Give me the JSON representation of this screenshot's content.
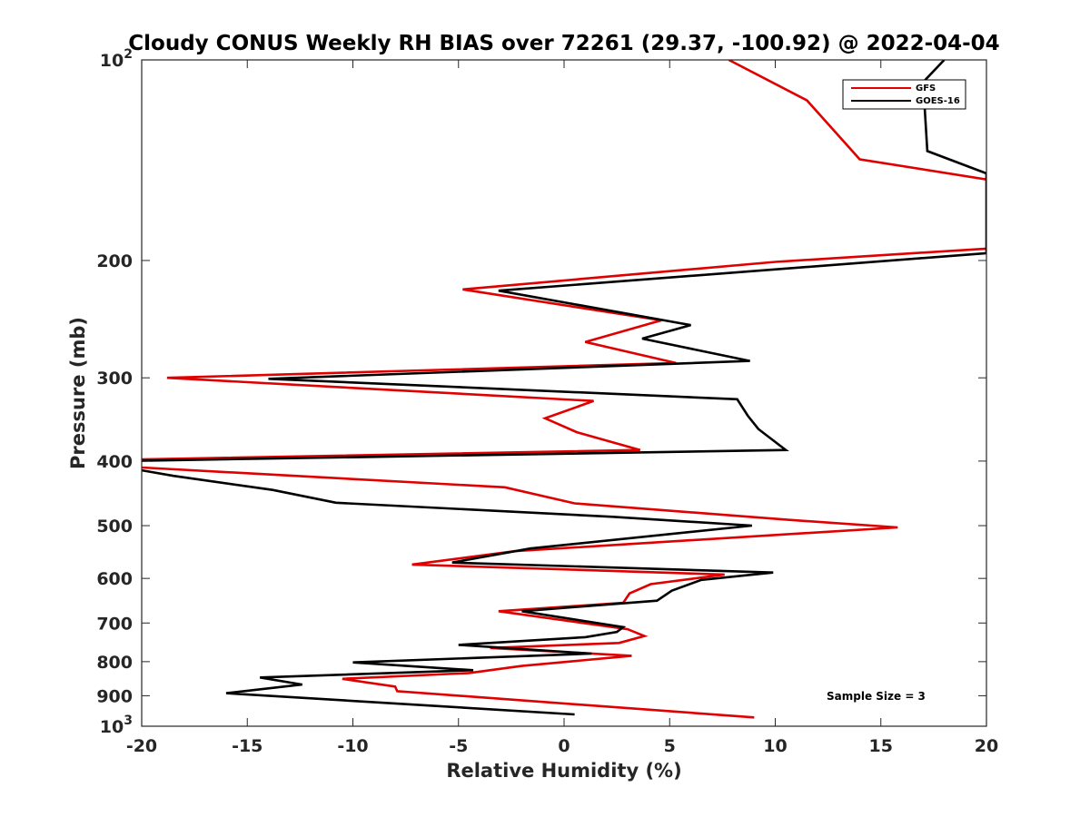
{
  "chart_data": {
    "type": "line",
    "title": "Cloudy CONUS Weekly RH BIAS over 72261 (29.37, -100.92) @ 2022-04-04",
    "xlabel": "Relative Humidity (%)",
    "ylabel": "Pressure (mb)",
    "xlim": [
      -20,
      20
    ],
    "ylim": [
      100,
      1000
    ],
    "y_scale": "log",
    "y_reversed": true,
    "grid": false,
    "legend_position": "top-right",
    "x_ticks": [
      -20,
      -15,
      -10,
      -5,
      0,
      5,
      10,
      15,
      20
    ],
    "x_tick_labels": [
      "-20",
      "-15",
      "-10",
      "-5",
      "0",
      "5",
      "10",
      "15",
      "20"
    ],
    "y_ticks": [
      100,
      200,
      300,
      400,
      500,
      600,
      700,
      800,
      900,
      1000
    ],
    "y_tick_labels": [
      {
        "base": "10",
        "sup": "2"
      },
      {
        "base": "200",
        "sup": ""
      },
      {
        "base": "300",
        "sup": ""
      },
      {
        "base": "400",
        "sup": ""
      },
      {
        "base": "500",
        "sup": ""
      },
      {
        "base": "600",
        "sup": ""
      },
      {
        "base": "700",
        "sup": ""
      },
      {
        "base": "800",
        "sup": ""
      },
      {
        "base": "900",
        "sup": ""
      },
      {
        "base": "10",
        "sup": "3"
      }
    ],
    "annotations": [
      "Sample Size = 3"
    ],
    "series": [
      {
        "name": "GFS",
        "color": "#e00000",
        "points": [
          [
            7.8,
            100
          ],
          [
            11.5,
            115
          ],
          [
            14,
            141
          ],
          [
            20.5,
            152
          ],
          [
            20,
            192
          ],
          [
            10,
            201
          ],
          [
            -4.8,
            221
          ],
          [
            4.6,
            246
          ],
          [
            1,
            265
          ],
          [
            5.3,
            285
          ],
          [
            -18.8,
            300
          ],
          [
            1.4,
            325
          ],
          [
            -0.9,
            345
          ],
          [
            0.6,
            362
          ],
          [
            3.6,
            385
          ],
          [
            -20.5,
            398
          ],
          [
            -20,
            409
          ],
          [
            -2.8,
            438
          ],
          [
            0.5,
            463
          ],
          [
            10.6,
            490
          ],
          [
            15.8,
            503
          ],
          [
            -2.3,
            546
          ],
          [
            -7.2,
            572
          ],
          [
            7.6,
            592
          ],
          [
            4.1,
            612
          ],
          [
            3.1,
            632
          ],
          [
            2.8,
            653
          ],
          [
            -3.1,
            672
          ],
          [
            3,
            715
          ],
          [
            3.8,
            732
          ],
          [
            2.6,
            750
          ],
          [
            -3.5,
            763
          ],
          [
            3.2,
            784
          ],
          [
            -2,
            812
          ],
          [
            -4.5,
            832
          ],
          [
            -10.5,
            849
          ],
          [
            -8,
            872
          ],
          [
            -7.9,
            886
          ],
          [
            9,
            970
          ]
        ]
      },
      {
        "name": "GOES-16",
        "color": "#000000",
        "points": [
          [
            18,
            100
          ],
          [
            17,
            108
          ],
          [
            17.2,
            137
          ],
          [
            20,
            148
          ],
          [
            20,
            195
          ],
          [
            -3.1,
            222
          ],
          [
            6,
            250
          ],
          [
            3.7,
            262
          ],
          [
            8.8,
            283
          ],
          [
            -14,
            301
          ],
          [
            8.2,
            323
          ],
          [
            8.7,
            342
          ],
          [
            9.2,
            358
          ],
          [
            10.5,
            385
          ],
          [
            -21,
            400
          ],
          [
            -20,
            413
          ],
          [
            -18.5,
            421
          ],
          [
            -13.8,
            442
          ],
          [
            -10.8,
            462
          ],
          [
            2.3,
            485
          ],
          [
            8.9,
            500
          ],
          [
            -1.6,
            541
          ],
          [
            -5.3,
            568
          ],
          [
            9.9,
            588
          ],
          [
            6.5,
            603
          ],
          [
            5.1,
            626
          ],
          [
            4.4,
            648
          ],
          [
            -2,
            672
          ],
          [
            2.8,
            710
          ],
          [
            2.5,
            722
          ],
          [
            1,
            735
          ],
          [
            -5,
            755
          ],
          [
            1.3,
            778
          ],
          [
            -10,
            802
          ],
          [
            -4.3,
            824
          ],
          [
            -14.4,
            845
          ],
          [
            -12.4,
            866
          ],
          [
            -16,
            892
          ],
          [
            0.5,
            960
          ]
        ]
      }
    ]
  }
}
